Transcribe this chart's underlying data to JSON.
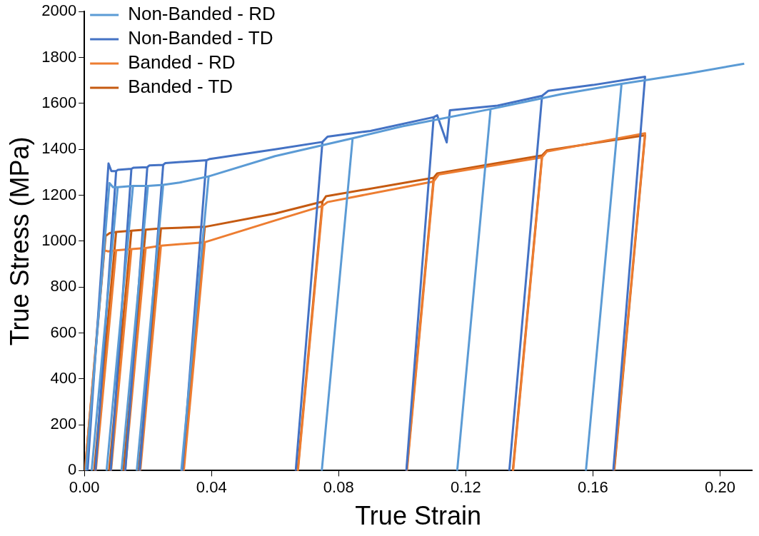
{
  "chart_data": {
    "type": "line",
    "xlabel": "True Strain",
    "ylabel": "True Stress (MPa)",
    "xlim": [
      0,
      0.21
    ],
    "xticks": [
      {
        "value": 0,
        "label": "0.00"
      },
      {
        "value": 0.04,
        "label": "0.04"
      },
      {
        "value": 0.08,
        "label": "0.08"
      },
      {
        "value": 0.12,
        "label": "0.12"
      },
      {
        "value": 0.16,
        "label": "0.16"
      },
      {
        "value": 0.2,
        "label": "0.20"
      }
    ],
    "ylim": [
      0,
      2000
    ],
    "yticks": [
      0,
      200,
      400,
      600,
      800,
      1000,
      1200,
      1400,
      1600,
      1800,
      2000
    ],
    "grid": false,
    "legend": "top left",
    "marker": "none",
    "line_style": "solid",
    "series": [
      {
        "name": "Non-Banded - RD",
        "color": "#5b9bd5",
        "x": [
          0.0005,
          0.0079,
          0.009,
          0.0105,
          0.0023,
          0.0105,
          0.0153,
          0.007,
          0.0153,
          0.02,
          0.0117,
          0.02,
          0.0248,
          0.0165,
          0.0248,
          0.03,
          0.0391,
          0.0305,
          0.0391,
          0.06,
          0.0844,
          0.0747,
          0.0844,
          0.1,
          0.1278,
          0.1173,
          0.1278,
          0.15,
          0.169,
          0.1578,
          0.169,
          0.19,
          0.2076
        ],
        "values": [
          0,
          1253,
          1235,
          1235,
          0,
          1235,
          1240,
          0,
          1240,
          1240,
          0,
          1240,
          1245,
          0,
          1245,
          1255,
          1282,
          0,
          1282,
          1370,
          1448,
          0,
          1448,
          1500,
          1575,
          0,
          1575,
          1640,
          1685,
          0,
          1685,
          1730,
          1773
        ]
      },
      {
        "name": "Non-Banded - TD",
        "color": "#4472c4",
        "x": [
          0.001,
          0.0076,
          0.0085,
          0.01,
          0.0035,
          0.01,
          0.0105,
          0.0148,
          0.0083,
          0.0148,
          0.0155,
          0.0198,
          0.0129,
          0.0198,
          0.0205,
          0.0248,
          0.0174,
          0.0248,
          0.0255,
          0.0384,
          0.0308,
          0.0384,
          0.0395,
          0.06,
          0.0749,
          0.0665,
          0.0749,
          0.0765,
          0.09,
          0.1099,
          0.1013,
          0.1099,
          0.111,
          0.114,
          0.115,
          0.13,
          0.144,
          0.1337,
          0.144,
          0.146,
          0.16,
          0.1764,
          0.1664
        ],
        "values": [
          0,
          1338,
          1305,
          1305,
          0,
          1305,
          1310,
          1315,
          0,
          1315,
          1320,
          1322,
          0,
          1322,
          1330,
          1332,
          0,
          1332,
          1340,
          1352,
          0,
          1352,
          1358,
          1400,
          1432,
          0,
          1432,
          1455,
          1480,
          1540,
          0,
          1540,
          1548,
          1430,
          1570,
          1590,
          1633,
          0,
          1633,
          1655,
          1680,
          1716,
          0
        ]
      },
      {
        "name": "Banded - RD",
        "color": "#ed7d31",
        "x": [
          0.0002,
          0.0062,
          0.0075,
          0.01,
          0.0036,
          0.01,
          0.0148,
          0.0084,
          0.0148,
          0.0193,
          0.0128,
          0.0193,
          0.0241,
          0.0176,
          0.0241,
          0.0379,
          0.0313,
          0.0379,
          0.06,
          0.0749,
          0.0672,
          0.0749,
          0.0765,
          0.1099,
          0.1015,
          0.1099,
          0.1115,
          0.144,
          0.1349,
          0.144,
          0.1455,
          0.1764,
          0.1666
        ],
        "values": [
          0,
          960,
          955,
          960,
          0,
          960,
          965,
          0,
          965,
          970,
          0,
          970,
          980,
          0,
          980,
          995,
          0,
          995,
          1090,
          1153,
          0,
          1153,
          1170,
          1260,
          0,
          1260,
          1290,
          1365,
          0,
          1365,
          1390,
          1470,
          0
        ]
      },
      {
        "name": "Banded - TD",
        "color": "#c55a11",
        "x": [
          0.0002,
          0.0067,
          0.008,
          0.01,
          0.0031,
          0.01,
          0.0148,
          0.0078,
          0.0148,
          0.0193,
          0.0123,
          0.0193,
          0.0241,
          0.0171,
          0.0241,
          0.0379,
          0.0308,
          0.0379,
          0.06,
          0.0749,
          0.0671,
          0.0749,
          0.076,
          0.1099,
          0.1014,
          0.1099,
          0.111,
          0.144,
          0.1348,
          0.144,
          0.1455,
          0.1764,
          0.1667
        ],
        "values": [
          0,
          1023,
          1035,
          1040,
          0,
          1040,
          1045,
          0,
          1045,
          1050,
          0,
          1050,
          1055,
          0,
          1055,
          1062,
          0,
          1062,
          1120,
          1172,
          0,
          1172,
          1195,
          1276,
          0,
          1276,
          1295,
          1373,
          0,
          1373,
          1395,
          1461,
          0
        ]
      }
    ]
  }
}
